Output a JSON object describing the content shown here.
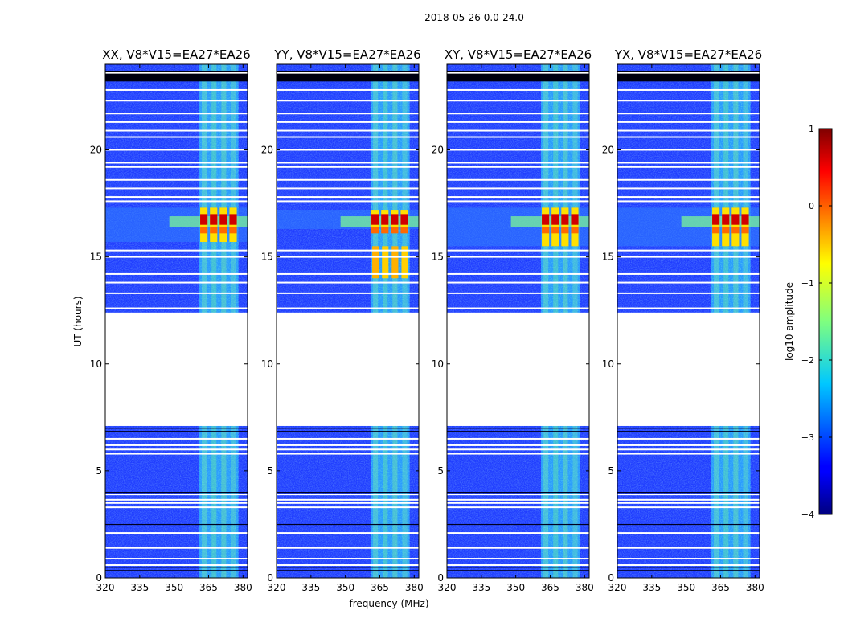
{
  "figure": {
    "suptitle": "2018-05-26 0.0-24.0"
  },
  "chart_data": {
    "type": "heatmap",
    "ylabel": "UT (hours)",
    "xlabel": "frequency (MHz)",
    "xlim": [
      320,
      382
    ],
    "ylim": [
      0,
      24
    ],
    "xticks": [
      320,
      335,
      350,
      365,
      380
    ],
    "yticks": [
      0,
      5,
      10,
      15,
      20
    ],
    "panels": [
      {
        "title": "XX, V8*V15=EA27*EA26",
        "peak_band": [
          15.7,
          17.3
        ],
        "secondary_band": null
      },
      {
        "title": "YY, V8*V15=EA27*EA26",
        "peak_band": [
          16.3,
          17.2
        ],
        "secondary_band": [
          14.0,
          15.5
        ]
      },
      {
        "title": "XY, V8*V15=EA27*EA26",
        "peak_band": [
          15.5,
          17.3
        ],
        "secondary_band": null
      },
      {
        "title": "YX, V8*V15=EA27*EA26",
        "peak_band": [
          15.5,
          17.3
        ],
        "secondary_band": null
      }
    ],
    "data_gap_hours": [
      7.1,
      12.4
    ],
    "rfi_band_mhz": [
      361,
      378
    ],
    "colorbar": {
      "label": "log10 amplitude",
      "min": -4,
      "max": 1,
      "ticks": [
        1,
        0,
        -1,
        -2,
        -3,
        -4
      ],
      "ticklabels": [
        "1",
        "0",
        "−1",
        "−2",
        "−3",
        "−4"
      ]
    }
  }
}
